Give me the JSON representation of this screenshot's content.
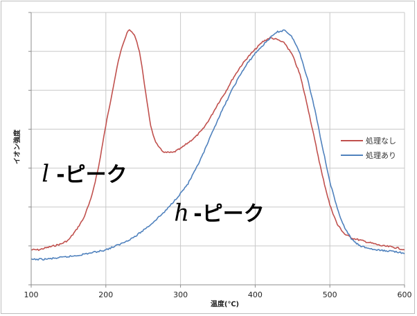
{
  "chart_data": {
    "type": "line",
    "xlabel": "温度(℃)",
    "ylabel": "イオン強度",
    "xlim": [
      100,
      600
    ],
    "x_ticks": [
      "100",
      "200",
      "300",
      "400",
      "500",
      "600"
    ],
    "ylim": [
      0,
      7
    ],
    "y_tick_labels_shown": false,
    "grid": true,
    "legend_position": "right",
    "series": [
      {
        "name": "処理なし",
        "color": "#c0504d",
        "x": [
          100,
          110,
          120,
          130,
          140,
          150,
          160,
          170,
          180,
          190,
          200,
          210,
          215,
          220,
          225,
          230,
          235,
          240,
          245,
          250,
          255,
          260,
          265,
          270,
          275,
          280,
          290,
          300,
          310,
          320,
          330,
          340,
          350,
          360,
          370,
          380,
          390,
          400,
          410,
          420,
          430,
          440,
          450,
          460,
          470,
          480,
          490,
          500,
          510,
          520,
          530,
          540,
          550,
          560,
          570,
          580,
          590,
          600
        ],
        "y": [
          0.9,
          0.9,
          0.95,
          1.0,
          1.05,
          1.15,
          1.4,
          1.7,
          2.2,
          3.0,
          4.1,
          5.1,
          5.6,
          6.0,
          6.3,
          6.55,
          6.5,
          6.35,
          6.0,
          5.4,
          4.7,
          4.1,
          3.75,
          3.55,
          3.45,
          3.4,
          3.4,
          3.5,
          3.65,
          3.8,
          4.0,
          4.3,
          4.65,
          4.95,
          5.3,
          5.6,
          5.85,
          6.05,
          6.25,
          6.35,
          6.3,
          6.2,
          5.9,
          5.4,
          4.6,
          3.7,
          2.8,
          2.05,
          1.55,
          1.3,
          1.2,
          1.15,
          1.1,
          1.05,
          1.0,
          0.98,
          0.95,
          0.9
        ]
      },
      {
        "name": "処理あり",
        "color": "#4f81bd",
        "x": [
          100,
          120,
          140,
          160,
          180,
          200,
          220,
          240,
          260,
          280,
          300,
          310,
          320,
          330,
          340,
          350,
          360,
          370,
          380,
          390,
          400,
          410,
          420,
          430,
          440,
          450,
          460,
          470,
          480,
          490,
          500,
          510,
          520,
          530,
          540,
          550,
          560,
          570,
          580,
          590,
          600
        ],
        "y": [
          0.65,
          0.66,
          0.7,
          0.75,
          0.82,
          0.9,
          1.05,
          1.25,
          1.55,
          1.9,
          2.35,
          2.6,
          2.95,
          3.35,
          3.8,
          4.25,
          4.65,
          5.05,
          5.4,
          5.7,
          5.95,
          6.15,
          6.35,
          6.5,
          6.55,
          6.35,
          5.95,
          5.3,
          4.5,
          3.55,
          2.65,
          1.95,
          1.45,
          1.15,
          1.0,
          0.95,
          0.9,
          0.88,
          0.87,
          0.85,
          0.8
        ]
      }
    ],
    "annotations": [
      {
        "letter": "l",
        "text": "-ピーク",
        "x": 180,
        "y": 2.65
      },
      {
        "letter": "h",
        "text": "-ピーク",
        "x": 360,
        "y": 1.65
      }
    ]
  }
}
